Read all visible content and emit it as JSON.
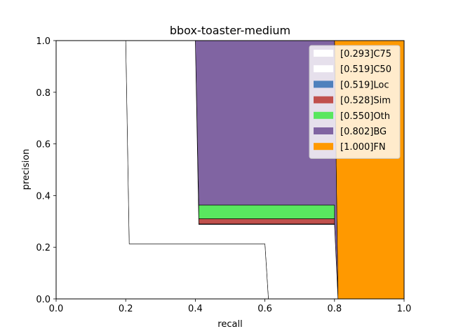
{
  "chart_data": {
    "type": "area",
    "title": "bbox-toaster-medium",
    "xlabel": "recall",
    "ylabel": "precision",
    "xlim": [
      0,
      1
    ],
    "ylim": [
      0,
      1
    ],
    "xticks": [
      "0.0",
      "0.2",
      "0.4",
      "0.6",
      "0.8",
      "1.0"
    ],
    "yticks": [
      "0.0",
      "0.2",
      "0.4",
      "0.6",
      "0.8",
      "1.0"
    ],
    "grid": false,
    "legend_position": "top-right",
    "series": [
      {
        "name": "[1.000]FN",
        "color": "#ff9900",
        "points": [
          [
            0.8,
            1.0
          ],
          [
            1.0,
            1.0
          ],
          [
            1.0,
            0.0
          ],
          [
            0.81,
            0.0
          ]
        ]
      },
      {
        "name": "[0.802]BG",
        "color": "#8064a2",
        "points": [
          [
            0.4,
            1.0
          ],
          [
            0.8,
            1.0
          ],
          [
            0.81,
            0.0
          ],
          [
            0.8,
            0.29
          ],
          [
            0.8,
            0.363
          ],
          [
            0.41,
            0.363
          ]
        ]
      },
      {
        "name": "[0.550]Oth",
        "color": "#59e75f",
        "points": [
          [
            0.41,
            0.363
          ],
          [
            0.8,
            0.363
          ],
          [
            0.8,
            0.31
          ],
          [
            0.41,
            0.31
          ]
        ]
      },
      {
        "name": "[0.528]Sim",
        "color": "#c0504d",
        "points": [
          [
            0.41,
            0.31
          ],
          [
            0.8,
            0.31
          ],
          [
            0.8,
            0.29
          ],
          [
            0.41,
            0.29
          ]
        ]
      },
      {
        "name": "[0.519]Loc",
        "color": "#4f81bd",
        "points": [
          [
            0.41,
            0.29
          ],
          [
            0.8,
            0.29
          ],
          [
            0.8,
            0.288
          ],
          [
            0.41,
            0.288
          ]
        ]
      },
      {
        "name": "[0.519]C50",
        "color": "#ffffff",
        "points": [
          [
            0.4,
            1.0
          ],
          [
            0.41,
            0.288
          ],
          [
            0.8,
            0.288
          ],
          [
            0.81,
            0.0
          ],
          [
            0.61,
            0.0
          ],
          [
            0.6,
            0.213
          ],
          [
            0.21,
            0.213
          ],
          [
            0.2,
            1.0
          ]
        ]
      },
      {
        "name": "[0.293]C75",
        "color": "#ffffff",
        "points": [
          [
            0.0,
            1.0
          ],
          [
            0.2,
            1.0
          ],
          [
            0.21,
            0.213
          ],
          [
            0.6,
            0.213
          ],
          [
            0.61,
            0.0
          ],
          [
            0.0,
            0.0
          ]
        ]
      }
    ],
    "legend_order": [
      "[0.293]C75",
      "[0.519]C50",
      "[0.519]Loc",
      "[0.528]Sim",
      "[0.550]Oth",
      "[0.802]BG",
      "[1.000]FN"
    ]
  }
}
